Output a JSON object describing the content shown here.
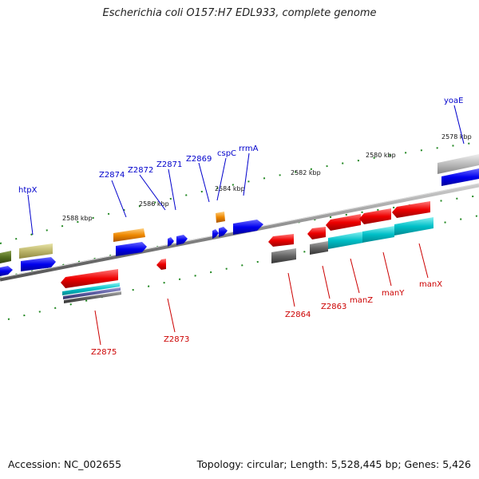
{
  "title": "Escherichia coli O157:H7 EDL933, complete genome",
  "accession": "Accession: NC_002655",
  "summary": "Topology: circular; Length: 5,528,445 bp; Genes: 5,426",
  "colors": {
    "label_forward": "#0000cc",
    "label_reverse": "#cc0000",
    "tick": "#228822",
    "backbone": "#888888"
  },
  "scale_labels": [
    "2578 kbp",
    "2580 kbp",
    "2582 kbp",
    "2584 kbp",
    "2586 kbp",
    "2588 kbp"
  ],
  "forward_genes": [
    "htpX",
    "Z2874",
    "Z2872",
    "Z2871",
    "Z2869",
    "cspC",
    "rrmA",
    "yoaE"
  ],
  "reverse_genes": [
    "Z2875",
    "Z2873",
    "Z2864",
    "Z2863",
    "manZ",
    "manY",
    "manX"
  ]
}
